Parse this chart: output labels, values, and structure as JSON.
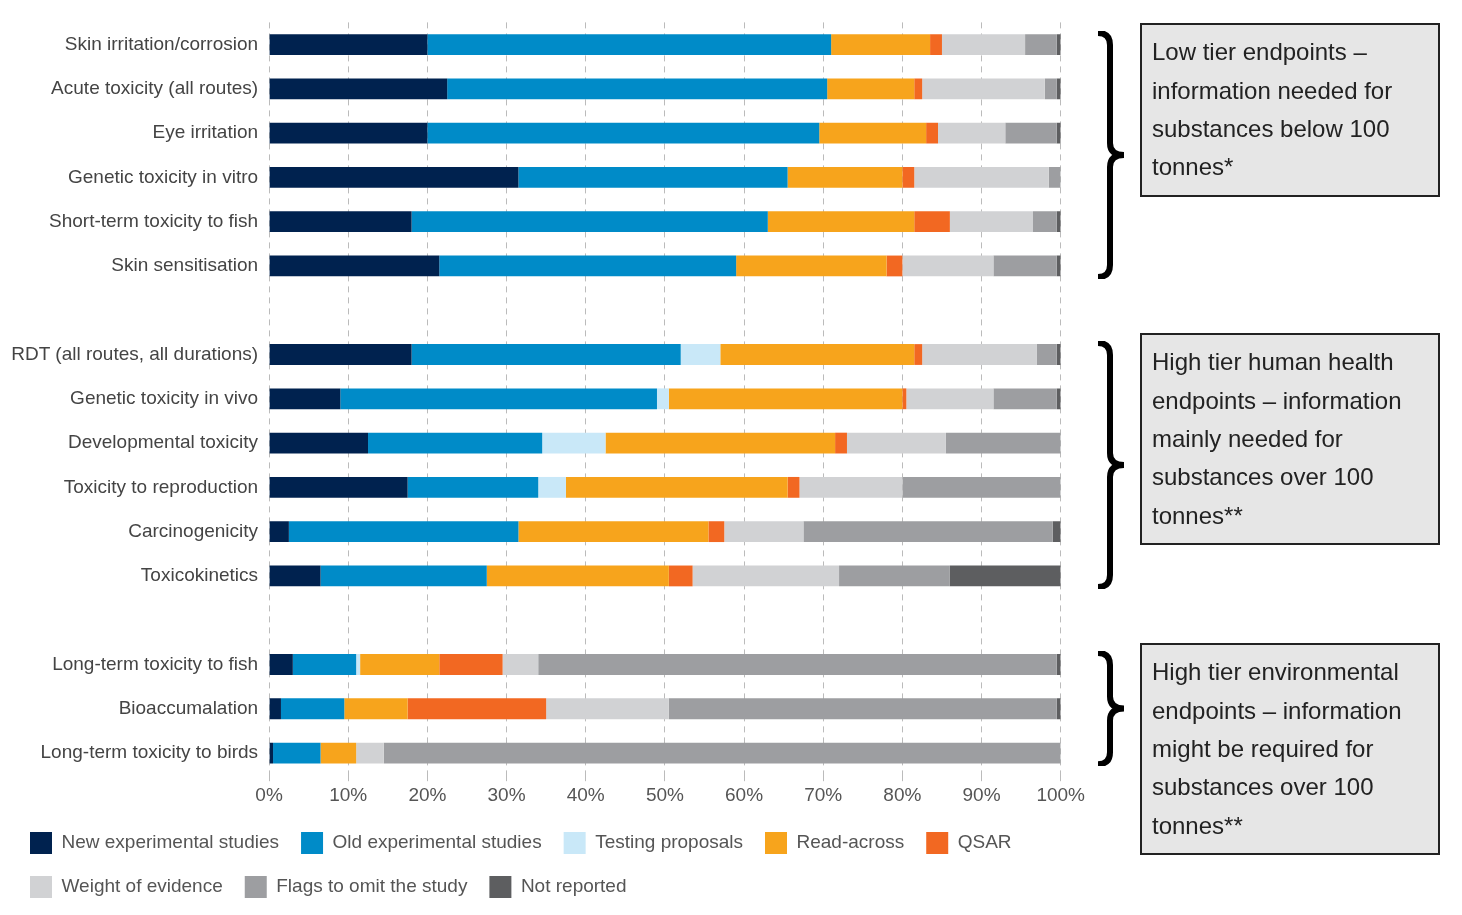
{
  "chart_data": {
    "type": "bar",
    "orientation": "horizontal",
    "stacked": true,
    "grid": "x",
    "legend": "bottom",
    "categories": [
      "Skin irritation/corrosion",
      "Acute toxicity (all routes)",
      "Eye irritation",
      "Genetic toxicity in vitro",
      "Short-term toxicity to fish",
      "Skin sensitisation",
      null,
      "RDT (all routes, all durations)",
      "Genetic toxicity in vivo",
      "Developmental toxicity",
      "Toxicity to reproduction",
      "Carcinogenicity",
      "Toxicokinetics",
      null,
      "Long-term toxicity to fish",
      "Bioaccumalation",
      "Long-term toxicity to birds"
    ],
    "xlim": [
      0,
      100
    ],
    "xticks": [
      {
        "value": 0,
        "label": "0%"
      },
      {
        "value": 10,
        "label": "10%"
      },
      {
        "value": 20,
        "label": "20%"
      },
      {
        "value": 30,
        "label": "30%"
      },
      {
        "value": 40,
        "label": "40%"
      },
      {
        "value": 50,
        "label": "50%"
      },
      {
        "value": 60,
        "label": "60%"
      },
      {
        "value": 70,
        "label": "70%"
      },
      {
        "value": 80,
        "label": "80%"
      },
      {
        "value": 90,
        "label": "90%"
      },
      {
        "value": 100,
        "label": "100%"
      }
    ],
    "series": [
      {
        "name": "New experimental studies",
        "color": "#00224f",
        "values": [
          20,
          22.5,
          20,
          31.5,
          18,
          21.5,
          null,
          18,
          9,
          12.5,
          17.5,
          2.5,
          6.5,
          null,
          3,
          1.5,
          0.5
        ]
      },
      {
        "name": "Old experimental studies",
        "color": "#008bc8",
        "values": [
          51,
          48,
          49.5,
          34,
          45,
          37.5,
          null,
          34,
          40,
          22,
          16.5,
          29,
          21,
          null,
          8,
          8,
          6
        ]
      },
      {
        "name": "Testing proposals",
        "color": "#c9e8f8",
        "values": [
          0,
          0,
          0,
          0,
          0,
          0,
          null,
          5,
          1.5,
          8,
          3.5,
          0,
          0,
          null,
          0.5,
          0,
          0
        ]
      },
      {
        "name": "Read-across",
        "color": "#f7a41c",
        "values": [
          12.5,
          11,
          13.5,
          14.5,
          18.5,
          19,
          null,
          24.5,
          29.5,
          29,
          28,
          24,
          23,
          null,
          10,
          8,
          4.5
        ]
      },
      {
        "name": "QSAR",
        "color": "#f26822",
        "values": [
          1.5,
          1,
          1.5,
          1.5,
          4.5,
          2,
          null,
          1,
          0.5,
          1.5,
          1.5,
          2,
          3,
          null,
          8,
          17.5,
          0
        ]
      },
      {
        "name": "Weight of evidence",
        "color": "#d1d2d4",
        "values": [
          10.5,
          15.5,
          8.5,
          17,
          10.5,
          11.5,
          null,
          14.5,
          11,
          12.5,
          13,
          10,
          18.5,
          null,
          4.5,
          15.5,
          3.5
        ]
      },
      {
        "name": "Flags to omit the study",
        "color": "#9d9ea1",
        "values": [
          4,
          1.5,
          6.5,
          1.5,
          3,
          8,
          null,
          2.5,
          8,
          14.5,
          20,
          31.5,
          14,
          null,
          65.5,
          49,
          85.5
        ]
      },
      {
        "name": "Not reported",
        "color": "#5d5e60",
        "values": [
          0.5,
          0.5,
          0.5,
          0,
          0.5,
          0.5,
          null,
          0.5,
          0.5,
          0,
          0,
          1,
          14,
          null,
          0.5,
          0.5,
          0
        ]
      }
    ],
    "annotations": [
      "Low tier endpoints – information needed for substances below 100 tonnes*",
      "High tier human health endpoints – information mainly needed for substances over 100 tonnes**",
      "High tier environmental endpoints – information might be required for substances over 100 tonnes**"
    ]
  }
}
